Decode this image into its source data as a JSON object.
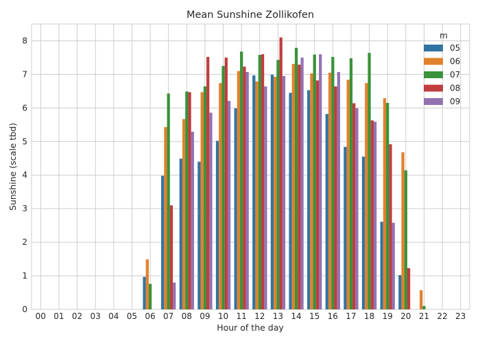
{
  "chart_data": {
    "type": "bar",
    "title": "Mean Sunshine Zollikofen",
    "xlabel": "Hour of the day",
    "ylabel": "Sunshine (scale tbd)",
    "ylim": [
      0,
      8.5
    ],
    "yticks": [
      0,
      1,
      2,
      3,
      4,
      5,
      6,
      7,
      8
    ],
    "grid": true,
    "legend": {
      "title": "m",
      "position": "top-right"
    },
    "categories": [
      "00",
      "01",
      "02",
      "03",
      "04",
      "05",
      "06",
      "07",
      "08",
      "09",
      "10",
      "11",
      "12",
      "13",
      "14",
      "15",
      "16",
      "17",
      "18",
      "19",
      "20",
      "21",
      "22",
      "23"
    ],
    "series": [
      {
        "name": "05",
        "color": "#3274a1",
        "values": [
          0,
          0,
          0,
          0,
          0,
          0,
          0.97,
          3.98,
          4.49,
          4.4,
          5.02,
          5.99,
          6.97,
          6.99,
          6.45,
          6.53,
          5.82,
          4.84,
          4.55,
          2.61,
          1.02,
          0,
          0,
          0
        ]
      },
      {
        "name": "06",
        "color": "#e1812c",
        "values": [
          0,
          0,
          0,
          0,
          0,
          0,
          1.49,
          5.43,
          5.67,
          6.47,
          6.74,
          7.1,
          6.79,
          6.93,
          7.31,
          7.03,
          7.05,
          6.84,
          6.74,
          6.29,
          4.68,
          0.57,
          0,
          0
        ]
      },
      {
        "name": "07",
        "color": "#3a923a",
        "values": [
          0,
          0,
          0,
          0,
          0,
          0,
          0.76,
          6.43,
          6.49,
          6.64,
          7.25,
          7.68,
          7.58,
          7.43,
          7.79,
          7.59,
          7.52,
          7.48,
          7.64,
          6.15,
          4.14,
          0.1,
          0,
          0
        ]
      },
      {
        "name": "08",
        "color": "#c03d3e",
        "values": [
          0,
          0,
          0,
          0,
          0,
          0,
          0,
          3.1,
          6.47,
          7.52,
          7.5,
          7.23,
          7.6,
          8.1,
          7.29,
          6.82,
          6.64,
          6.14,
          5.63,
          4.92,
          1.23,
          0,
          0,
          0
        ]
      },
      {
        "name": "09",
        "color": "#9372b2",
        "values": [
          0,
          0,
          0,
          0,
          0,
          0,
          0,
          0.8,
          5.29,
          5.86,
          6.21,
          7.07,
          6.64,
          6.95,
          7.5,
          7.6,
          7.07,
          5.99,
          5.59,
          2.58,
          0,
          0,
          0,
          0
        ]
      }
    ]
  }
}
